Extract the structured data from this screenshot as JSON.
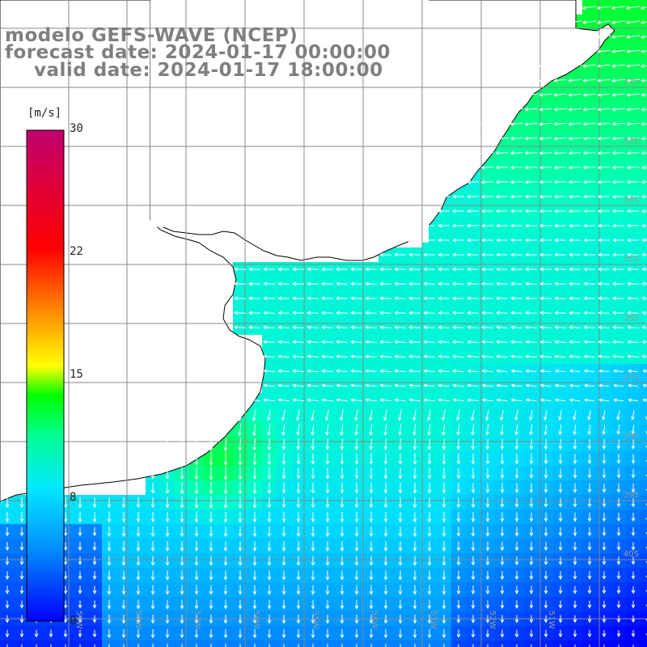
{
  "header": {
    "line1": "modelo GEFS-WAVE (NCEP)",
    "line2": "forecast date: 2024-01-17 00:00:00",
    "line3": "valid date: 2024-01-17 18:00:00"
  },
  "colorbar": {
    "unit": "[m/s]",
    "ticks": [
      "30",
      "22",
      "15",
      "8",
      "0"
    ],
    "tick_values": [
      30,
      22,
      15,
      8,
      0
    ],
    "colors": [
      "#0000ff",
      "#0090ff",
      "#00e0ff",
      "#00ff80",
      "#00ff00",
      "#ffff00",
      "#ff8000",
      "#ff0000",
      "#c0006e"
    ]
  },
  "map": {
    "lat_labels": [
      "32S",
      "33S",
      "34S",
      "35S",
      "36S",
      "37S",
      "38S",
      "39S",
      "40S"
    ],
    "lon_labels": [
      "59W",
      "58W",
      "57W",
      "56W",
      "55W",
      "54W",
      "53W",
      "52W",
      "51W"
    ],
    "land_color": "#ffffff",
    "grid_color": "#888888",
    "arrow_color": "#ffffff"
  }
}
